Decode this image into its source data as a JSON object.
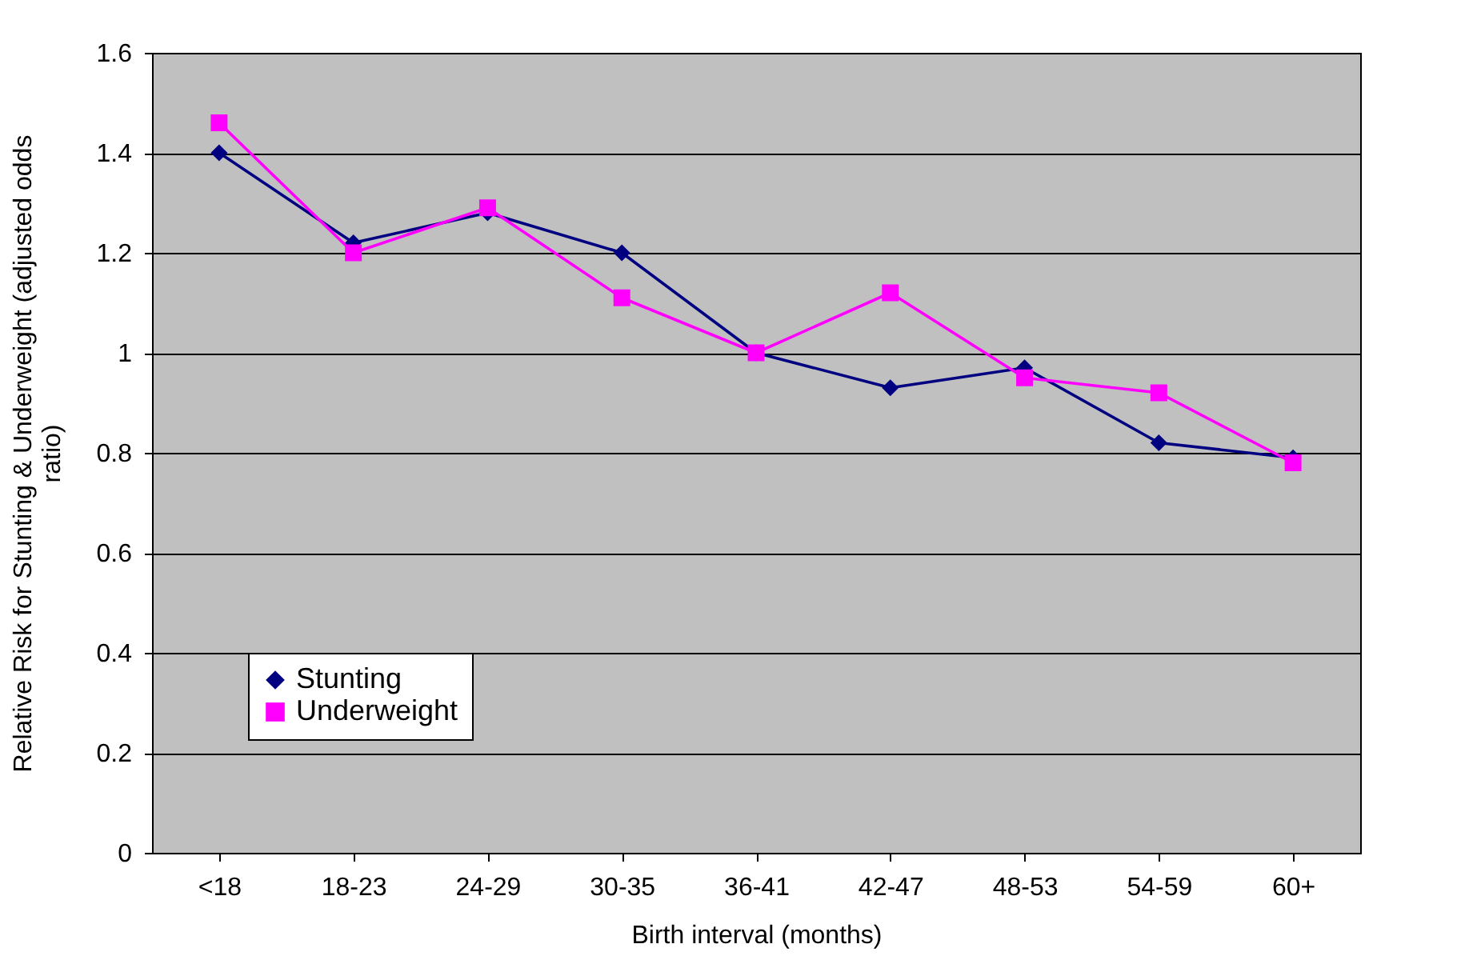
{
  "chart_data": {
    "type": "line",
    "xlabel": "Birth interval (months)",
    "ylabel": "Relative Risk for Stunting & Underweight (adjusted odds ratio)",
    "categories": [
      "<18",
      "18-23",
      "24-29",
      "30-35",
      "36-41",
      "42-47",
      "48-53",
      "54-59",
      "60+"
    ],
    "series": [
      {
        "name": "Stunting",
        "color": "#000080",
        "marker": "diamond",
        "values": [
          1.4,
          1.22,
          1.28,
          1.2,
          1.0,
          0.93,
          0.97,
          0.82,
          0.79
        ]
      },
      {
        "name": "Underweight",
        "color": "#ff00ff",
        "marker": "square",
        "values": [
          1.46,
          1.2,
          1.29,
          1.11,
          1.0,
          1.12,
          0.95,
          0.92,
          0.78
        ]
      }
    ],
    "ylim": [
      0,
      1.6
    ],
    "yticks": [
      {
        "value": 0,
        "label": "0"
      },
      0.2,
      0.4,
      0.6,
      0.8,
      {
        "value": 1,
        "label": "1"
      },
      1.2,
      1.4,
      1.6
    ],
    "grid": "y",
    "legend": "bottom left",
    "line_style": "solid"
  }
}
